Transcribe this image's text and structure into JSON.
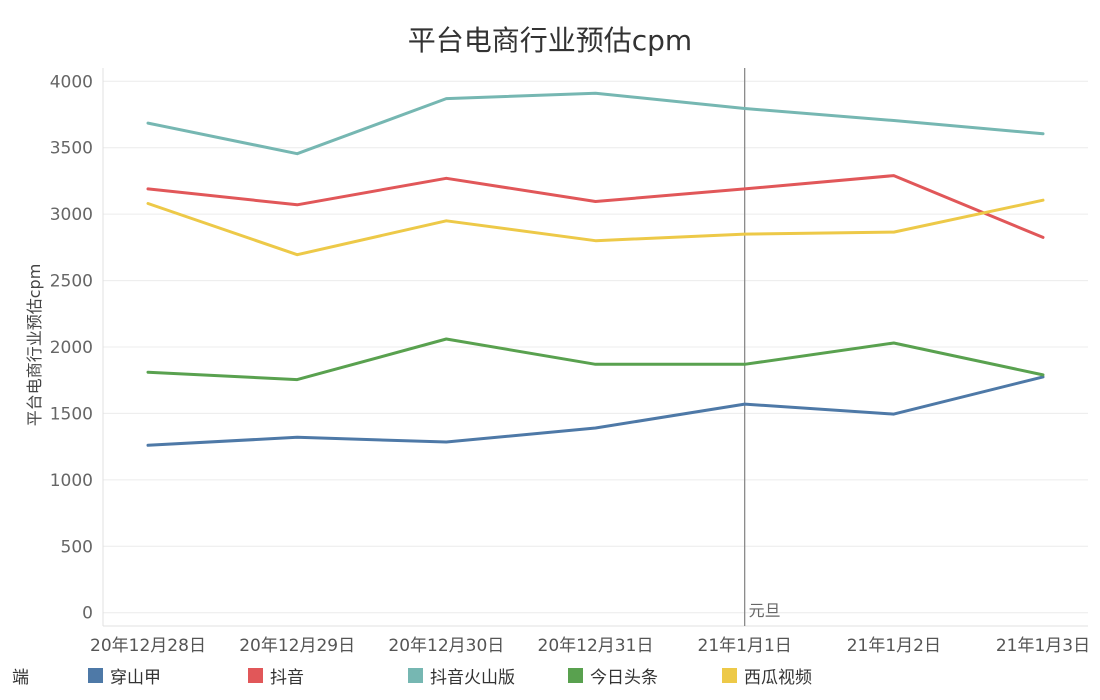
{
  "chart_data": {
    "type": "line",
    "title": "平台电商行业预估cpm",
    "ylabel": "平台电商行业预估cpm",
    "xlabel": "",
    "x": [
      "20年12月28日",
      "20年12月29日",
      "20年12月30日",
      "20年12月31日",
      "21年1月1日",
      "21年1月2日",
      "21年1月3日"
    ],
    "ylim": [
      -100,
      4100
    ],
    "yticks": [
      0,
      500,
      1000,
      1500,
      2000,
      2500,
      3000,
      3500,
      4000
    ],
    "grid": true,
    "legend_title": "端",
    "legend_position": "bottom",
    "series": [
      {
        "name": "穿山甲",
        "color": "#4e79a7",
        "values": [
          1260,
          1320,
          1285,
          1390,
          1570,
          1495,
          1775
        ]
      },
      {
        "name": "抖音",
        "color": "#e15759",
        "values": [
          3190,
          3070,
          3270,
          3095,
          3190,
          3290,
          2825
        ]
      },
      {
        "name": "抖音火山版",
        "color": "#76b7b2",
        "values": [
          3685,
          3455,
          3870,
          3910,
          3795,
          3705,
          3605
        ]
      },
      {
        "name": "今日头条",
        "color": "#59a14f",
        "values": [
          1810,
          1755,
          2060,
          1870,
          1870,
          2030,
          1790
        ]
      },
      {
        "name": "西瓜视频",
        "color": "#edc948",
        "values": [
          3080,
          2695,
          2950,
          2800,
          2850,
          2865,
          3105
        ]
      }
    ],
    "annotations": [
      {
        "label": "元旦",
        "x": "21年1月1日",
        "type": "vertical-line"
      }
    ]
  }
}
